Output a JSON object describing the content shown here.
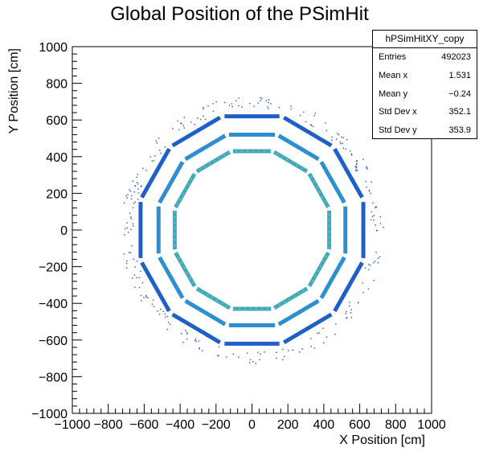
{
  "chart_data": {
    "type": "scatter",
    "title": "Global Position of the PSimHit",
    "xlabel": "X Position [cm]",
    "ylabel": "Y Position [cm]",
    "xlim": [
      -1000,
      1000
    ],
    "ylim": [
      -1000,
      1000
    ],
    "x_ticks": [
      -1000,
      -800,
      -600,
      -400,
      -200,
      0,
      200,
      400,
      600,
      800,
      1000
    ],
    "y_ticks": [
      -1000,
      -800,
      -600,
      -400,
      -200,
      0,
      200,
      400,
      600,
      800,
      1000
    ],
    "x_tick_labels": [
      "−1000",
      "−800",
      "−600",
      "−400",
      "−200",
      "0",
      "200",
      "400",
      "600",
      "800",
      "1000"
    ],
    "y_tick_labels": [
      "−1000",
      "−800",
      "−600",
      "−400",
      "−200",
      "0",
      "200",
      "400",
      "600",
      "800",
      "1000"
    ],
    "grid": false,
    "rings": [
      {
        "apothem": 430,
        "sides": 12,
        "color": "#3fa8c0"
      },
      {
        "apothem": 520,
        "sides": 12,
        "color": "#2e8fd0"
      },
      {
        "apothem": 620,
        "sides": 12,
        "color": "#1e5fc8"
      }
    ],
    "stats_box": {
      "name": "hPSimHitXY_copy",
      "rows": [
        {
          "label": "Entries",
          "value": "492023"
        },
        {
          "label": "Mean x",
          "value": "1.531"
        },
        {
          "label": "Mean y",
          "value": "−0.24"
        },
        {
          "label": "Std Dev x",
          "value": "352.1"
        },
        {
          "label": "Std Dev y",
          "value": "353.9"
        }
      ]
    }
  }
}
